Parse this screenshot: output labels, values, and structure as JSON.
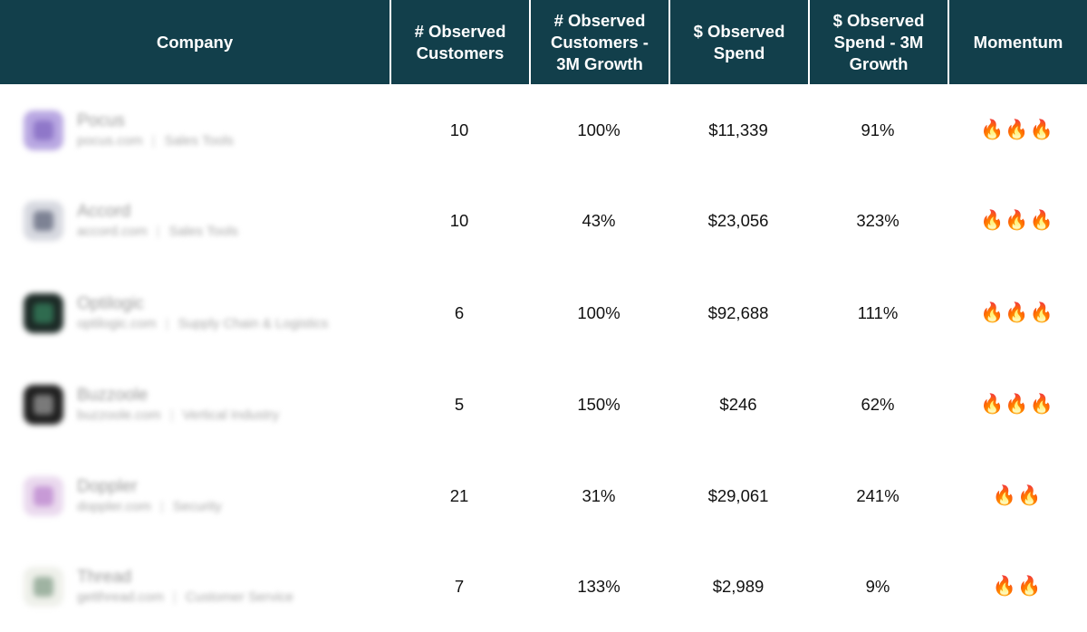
{
  "header": {
    "company": "Company",
    "observed_customers": "# Observed\nCustomers",
    "observed_customers_growth": "# Observed\nCustomers -\n3M Growth",
    "observed_spend": "$ Observed\nSpend",
    "observed_spend_growth": "$ Observed\nSpend - 3M\nGrowth",
    "momentum": "Momentum"
  },
  "rows": [
    {
      "name": "Pocus",
      "domain": "pocus.com",
      "category": "Sales Tools",
      "customers": "10",
      "customers_growth": "100%",
      "spend": "$11,339",
      "spend_growth": "91%",
      "momentum": "🔥🔥🔥",
      "logo_color": "#b9a8e2",
      "logo_inner": "#8f77c9"
    },
    {
      "name": "Accord",
      "domain": "accord.com",
      "category": "Sales Tools",
      "customers": "10",
      "customers_growth": "43%",
      "spend": "$23,056",
      "spend_growth": "323%",
      "momentum": "🔥🔥🔥",
      "logo_color": "#d7d9e0",
      "logo_inner": "#7d8294"
    },
    {
      "name": "Optilogic",
      "domain": "optilogic.com",
      "category": "Supply Chain & Logistics",
      "customers": "6",
      "customers_growth": "100%",
      "spend": "$92,688",
      "spend_growth": "111%",
      "momentum": "🔥🔥🔥",
      "logo_color": "#1c2a26",
      "logo_inner": "#2f6b4f"
    },
    {
      "name": "Buzzoole",
      "domain": "buzzoole.com",
      "category": "Vertical Industry",
      "customers": "5",
      "customers_growth": "150%",
      "spend": "$246",
      "spend_growth": "62%",
      "momentum": "🔥🔥🔥",
      "logo_color": "#202020",
      "logo_inner": "#7a7a7a"
    },
    {
      "name": "Doppler",
      "domain": "doppler.com",
      "category": "Security",
      "customers": "21",
      "customers_growth": "31%",
      "spend": "$29,061",
      "spend_growth": "241%",
      "momentum": "🔥🔥",
      "logo_color": "#ead9ee",
      "logo_inner": "#c79ad6"
    },
    {
      "name": "Thread",
      "domain": "getthread.com",
      "category": "Customer Service",
      "customers": "7",
      "customers_growth": "133%",
      "spend": "$2,989",
      "spend_growth": "9%",
      "momentum": "🔥🔥",
      "logo_color": "#eef0ea",
      "logo_inner": "#9fb3a2"
    }
  ]
}
